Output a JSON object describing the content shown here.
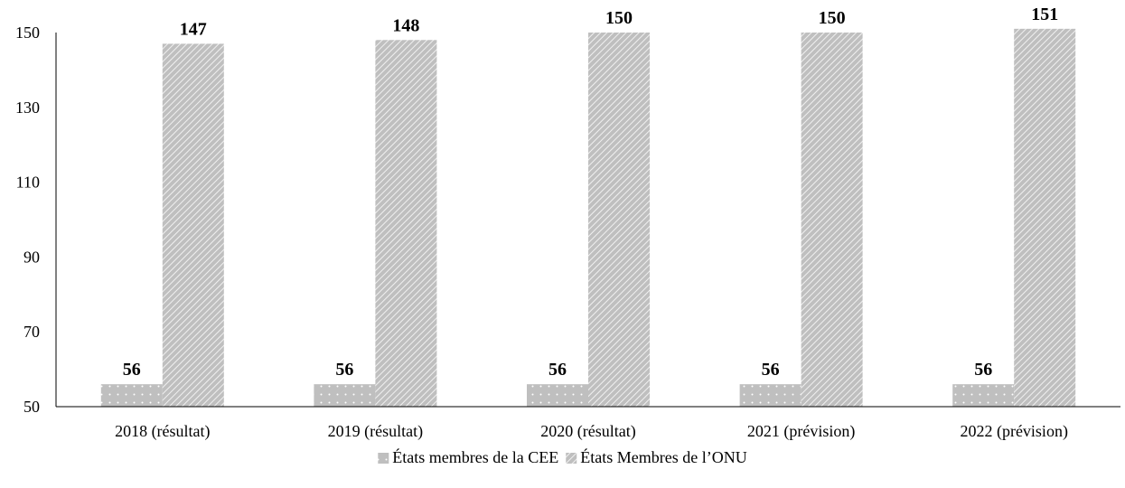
{
  "chart_data": {
    "type": "bar",
    "categories": [
      "2018 (résultat)",
      "2019 (résultat)",
      "2020 (résultat)",
      "2021 (prévision)",
      "2022 (prévision)"
    ],
    "series": [
      {
        "name": "États membres de la CEE",
        "values": [
          56,
          56,
          56,
          56,
          56
        ],
        "pattern": "dots",
        "color": "#bfbfbf"
      },
      {
        "name": "États Membres de l’ONU",
        "values": [
          147,
          148,
          150,
          150,
          151
        ],
        "pattern": "diagonal-hatch",
        "color": "#bfbfbf"
      }
    ],
    "ylim": [
      50,
      150
    ],
    "yticks": [
      50,
      70,
      90,
      110,
      130,
      150
    ],
    "grid": false,
    "legend_position": "bottom-center",
    "title": "",
    "xlabel": "",
    "ylabel": ""
  }
}
